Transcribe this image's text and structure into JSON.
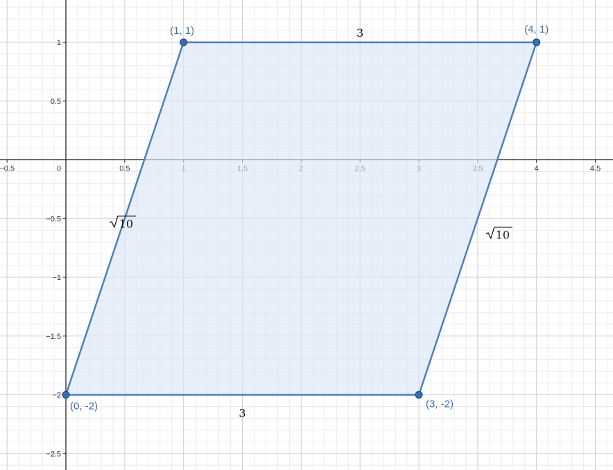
{
  "chart_data": {
    "type": "scatter",
    "xlim": [
      -0.56,
      4.65
    ],
    "ylim": [
      -2.64,
      1.36
    ],
    "grid": true,
    "minor_grid_step": 0.1,
    "major_grid_step": 0.5,
    "x_ticks": [
      {
        "value": -0.5,
        "label": "−0.5"
      },
      {
        "value": 0,
        "label": "0"
      },
      {
        "value": 0.5,
        "label": "0.5"
      },
      {
        "value": 1,
        "label": "1"
      },
      {
        "value": 1.5,
        "label": "1.5"
      },
      {
        "value": 2,
        "label": "2"
      },
      {
        "value": 2.5,
        "label": "2.5"
      },
      {
        "value": 3,
        "label": "3"
      },
      {
        "value": 3.5,
        "label": "3.5"
      },
      {
        "value": 4,
        "label": "4"
      },
      {
        "value": 4.5,
        "label": "4.5"
      }
    ],
    "y_ticks": [
      {
        "value": 1,
        "label": "1"
      },
      {
        "value": 0.5,
        "label": "0.5"
      },
      {
        "value": -0.5,
        "label": "−0.5"
      },
      {
        "value": -1,
        "label": "−1"
      },
      {
        "value": -1.5,
        "label": "−1.5"
      },
      {
        "value": -2,
        "label": "−2"
      },
      {
        "value": -2.5,
        "label": "−2.5"
      }
    ],
    "points": [
      {
        "id": "a",
        "x": 1,
        "y": 1,
        "label": "(1, 1)"
      },
      {
        "id": "b",
        "x": 4,
        "y": 1,
        "label": "(4, 1)"
      },
      {
        "id": "c",
        "x": 3,
        "y": -2,
        "label": "(3, -2)"
      },
      {
        "id": "d",
        "x": 0,
        "y": -2,
        "label": "(0, -2)"
      }
    ],
    "polygon": [
      "a",
      "b",
      "c",
      "d"
    ],
    "side_labels": [
      {
        "side": "top",
        "radicand": "",
        "text": "3"
      },
      {
        "side": "bottom",
        "radicand": "",
        "text": "3"
      },
      {
        "side": "left",
        "radicand": "10",
        "text": ""
      },
      {
        "side": "right",
        "radicand": "10",
        "text": ""
      }
    ],
    "colors": {
      "polygon_stroke": "#4a7fc1",
      "polygon_fill": "#d8e6f7",
      "point_fill": "#2f6fbf",
      "point_label": "#3d6fb0",
      "minor_grid": "#ebebeb",
      "major_grid": "#cfcfcf",
      "axis": "#222222"
    }
  }
}
